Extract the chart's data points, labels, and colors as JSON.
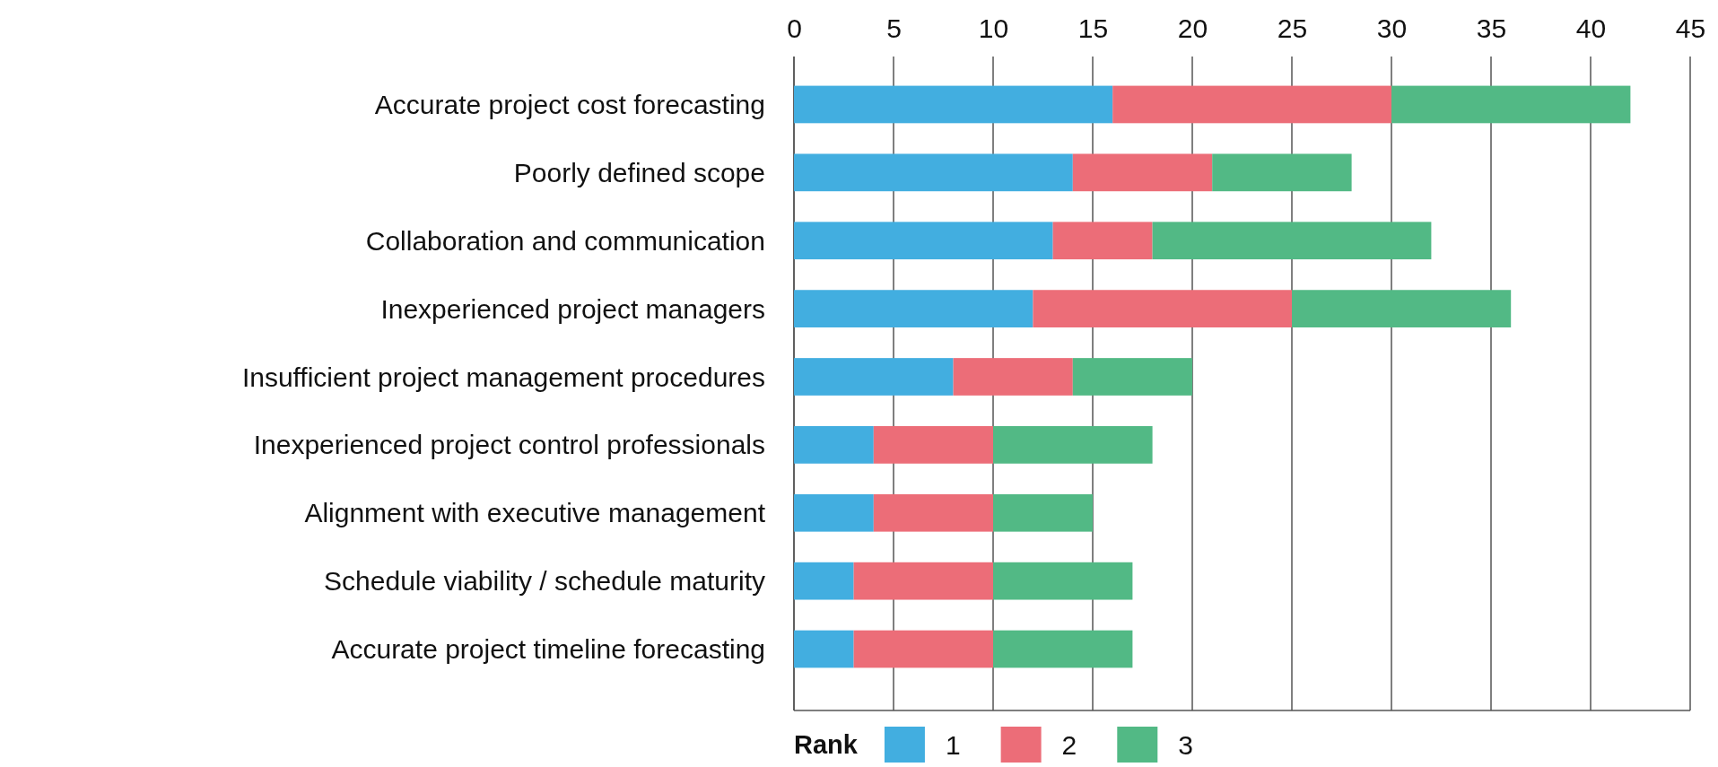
{
  "chart_data": {
    "type": "bar",
    "orientation": "horizontal",
    "stacked": true,
    "categories": [
      "Accurate project cost forecasting",
      "Poorly defined scope",
      "Collaboration and communication",
      "Inexperienced project managers",
      "Insufficient project management procedures",
      "Inexperienced project control professionals",
      "Alignment with executive management",
      "Schedule viability / schedule maturity",
      "Accurate project timeline forecasting"
    ],
    "series": [
      {
        "name": "1",
        "color": "#42aee0",
        "values": [
          16,
          14,
          13,
          12,
          8,
          4,
          4,
          3,
          3
        ]
      },
      {
        "name": "2",
        "color": "#ec6d78",
        "values": [
          14,
          7,
          5,
          13,
          6,
          6,
          6,
          7,
          7
        ]
      },
      {
        "name": "3",
        "color": "#52b985",
        "values": [
          12,
          7,
          14,
          11,
          6,
          8,
          5,
          7,
          7
        ]
      }
    ],
    "legend_title": "Rank",
    "legend": "bottom",
    "xlim": [
      0,
      45
    ],
    "xticks": [
      0,
      5,
      10,
      15,
      20,
      25,
      30,
      35,
      40,
      45
    ],
    "grid": "x"
  }
}
